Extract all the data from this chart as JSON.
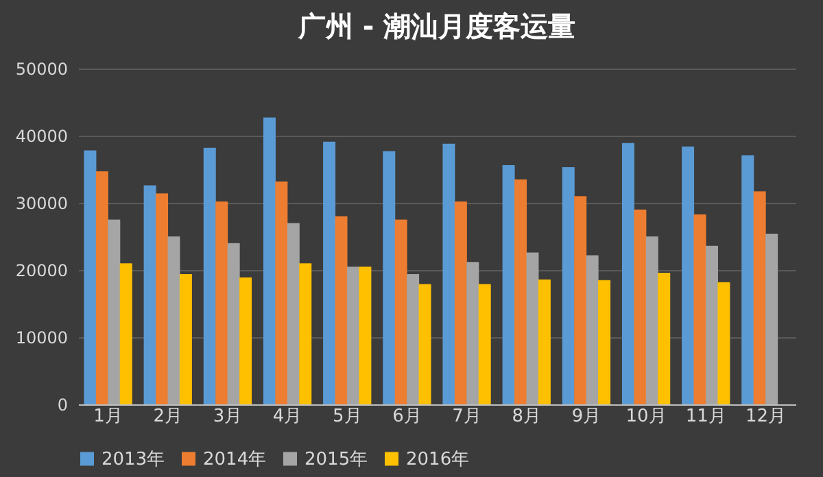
{
  "chart_data": {
    "type": "bar",
    "title": "广州 - 潮汕月度客运量",
    "categories": [
      "1月",
      "2月",
      "3月",
      "4月",
      "5月",
      "6月",
      "7月",
      "8月",
      "9月",
      "10月",
      "11月",
      "12月"
    ],
    "series": [
      {
        "name": "2013年",
        "color": "#5b9bd5",
        "values": [
          37800,
          32600,
          38200,
          42700,
          39100,
          37700,
          38800,
          35600,
          35300,
          38900,
          38400,
          37100
        ]
      },
      {
        "name": "2014年",
        "color": "#ed7d31",
        "values": [
          34700,
          31400,
          30200,
          33200,
          28000,
          27500,
          30200,
          33500,
          31000,
          29000,
          28300,
          31700
        ]
      },
      {
        "name": "2015年",
        "color": "#a5a5a5",
        "values": [
          27500,
          25000,
          24000,
          27000,
          20500,
          19400,
          21200,
          22600,
          22200,
          25000,
          23600,
          25400
        ]
      },
      {
        "name": "2016年",
        "color": "#ffc000",
        "values": [
          21000,
          19400,
          18900,
          21000,
          20500,
          17900,
          17900,
          18600,
          18500,
          19600,
          18200,
          null
        ]
      }
    ],
    "ylim": [
      0,
      50000
    ],
    "yticks": [
      0,
      10000,
      20000,
      30000,
      40000,
      50000
    ],
    "grid": "y",
    "legend": "bottom"
  }
}
